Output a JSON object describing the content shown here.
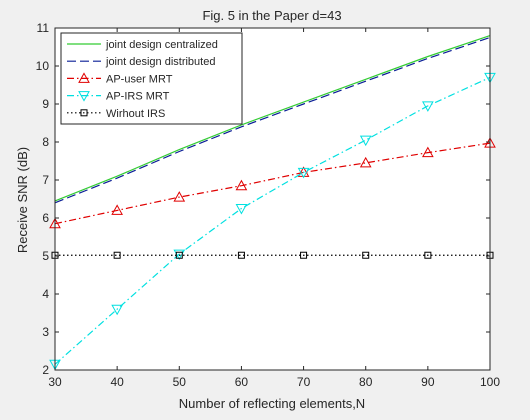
{
  "chart_data": {
    "type": "line",
    "title": "Fig. 5 in the Paper d=43",
    "xlabel": "Number of reflecting elements,N",
    "ylabel": "Receive SNR (dB)",
    "xlim": [
      30,
      100
    ],
    "ylim": [
      2,
      11
    ],
    "xticks": [
      30,
      40,
      50,
      60,
      70,
      80,
      90,
      100
    ],
    "yticks": [
      2,
      3,
      4,
      5,
      6,
      7,
      8,
      9,
      10,
      11
    ],
    "grid": false,
    "legend_position": "top-left",
    "x": [
      30,
      40,
      50,
      60,
      70,
      80,
      90,
      100
    ],
    "series": [
      {
        "name": "joint design centralized",
        "color": "#33cc33",
        "line": "solid",
        "marker": "none",
        "values": [
          6.45,
          7.1,
          7.8,
          8.45,
          9.05,
          9.65,
          10.25,
          10.8
        ]
      },
      {
        "name": "joint design distributed",
        "color": "#0a1e96",
        "line": "dashed",
        "marker": "none",
        "values": [
          6.4,
          7.05,
          7.75,
          8.4,
          9.0,
          9.6,
          10.2,
          10.75
        ]
      },
      {
        "name": "AP-user MRT",
        "color": "#e00000",
        "line": "dashdot",
        "marker": "triangle-up",
        "values": [
          5.85,
          6.2,
          6.55,
          6.85,
          7.2,
          7.45,
          7.72,
          7.97
        ]
      },
      {
        "name": "AP-IRS MRT",
        "color": "#00e0e0",
        "line": "dashdot",
        "marker": "triangle-down",
        "values": [
          2.15,
          3.6,
          5.05,
          6.25,
          7.2,
          8.05,
          8.95,
          9.7
        ]
      },
      {
        "name": "Wirhout IRS",
        "color": "#000000",
        "line": "dotted",
        "marker": "square",
        "values": [
          5.02,
          5.02,
          5.02,
          5.02,
          5.02,
          5.02,
          5.02,
          5.02
        ]
      }
    ]
  }
}
